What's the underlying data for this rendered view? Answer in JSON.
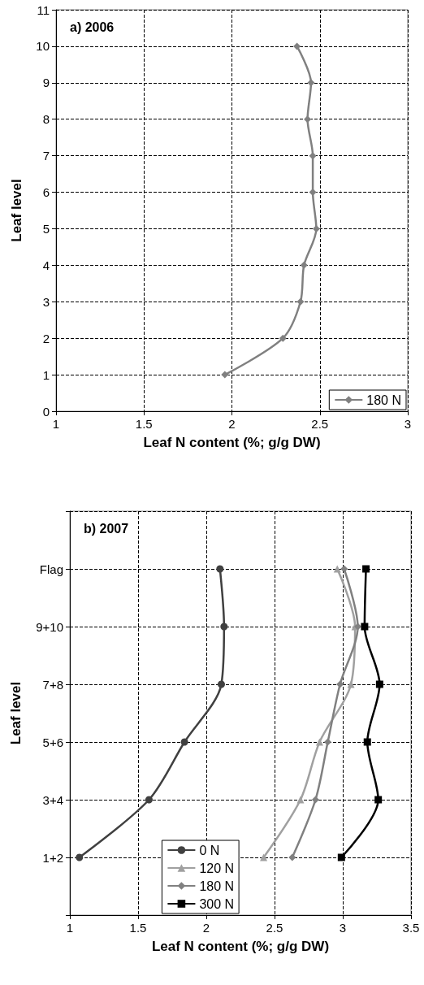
{
  "chart_data": [
    {
      "type": "line",
      "title": "a) 2006",
      "xlabel": "Leaf N content (%; g/g DW)",
      "ylabel": "Leaf level",
      "xlim": [
        1,
        3
      ],
      "xticks": [
        1,
        1.5,
        2,
        2.5,
        3
      ],
      "ylim": [
        0,
        11
      ],
      "yticks": [
        0,
        1,
        2,
        3,
        4,
        5,
        6,
        7,
        8,
        9,
        10,
        11
      ],
      "grid": true,
      "legend": "bottom right",
      "line_style": "solid",
      "series": [
        {
          "name": "180 N",
          "color": "#808080",
          "marker": "diamond",
          "x": [
            1.96,
            2.29,
            2.39,
            2.41,
            2.48,
            2.46,
            2.46,
            2.43,
            2.45,
            2.37
          ],
          "values": [
            1,
            2,
            3,
            4,
            5,
            6,
            7,
            8,
            9,
            10
          ]
        }
      ]
    },
    {
      "type": "line",
      "title": "b) 2007",
      "xlabel": "Leaf N content (%; g/g DW)",
      "ylabel": "Leaf level",
      "xlim": [
        1,
        3.5
      ],
      "xticks": [
        1,
        1.5,
        2,
        2.5,
        3,
        3.5
      ],
      "orientation": "horizontal",
      "categories": [
        null,
        "Flag",
        "9+10",
        "7+8",
        "5+6",
        "3+4",
        "1+2",
        null
      ],
      "grid": true,
      "legend": "bottom left",
      "line_style": "solid",
      "series": [
        {
          "name": "0 N",
          "color": "#404040",
          "marker": "circle",
          "values": [
            null,
            2.1,
            2.13,
            2.11,
            1.84,
            1.58,
            1.07,
            null
          ]
        },
        {
          "name": "120 N",
          "color": "#a0a0a0",
          "marker": "triangle",
          "values": [
            null,
            2.96,
            3.09,
            3.06,
            2.83,
            2.69,
            2.42,
            null
          ]
        },
        {
          "name": "180 N",
          "color": "#808080",
          "marker": "diamond",
          "values": [
            null,
            3.01,
            3.11,
            2.98,
            2.89,
            2.8,
            2.63,
            null
          ]
        },
        {
          "name": "300 N",
          "color": "#000000",
          "marker": "square",
          "values": [
            null,
            3.17,
            3.16,
            3.27,
            3.18,
            3.26,
            2.99,
            null
          ]
        }
      ]
    }
  ]
}
